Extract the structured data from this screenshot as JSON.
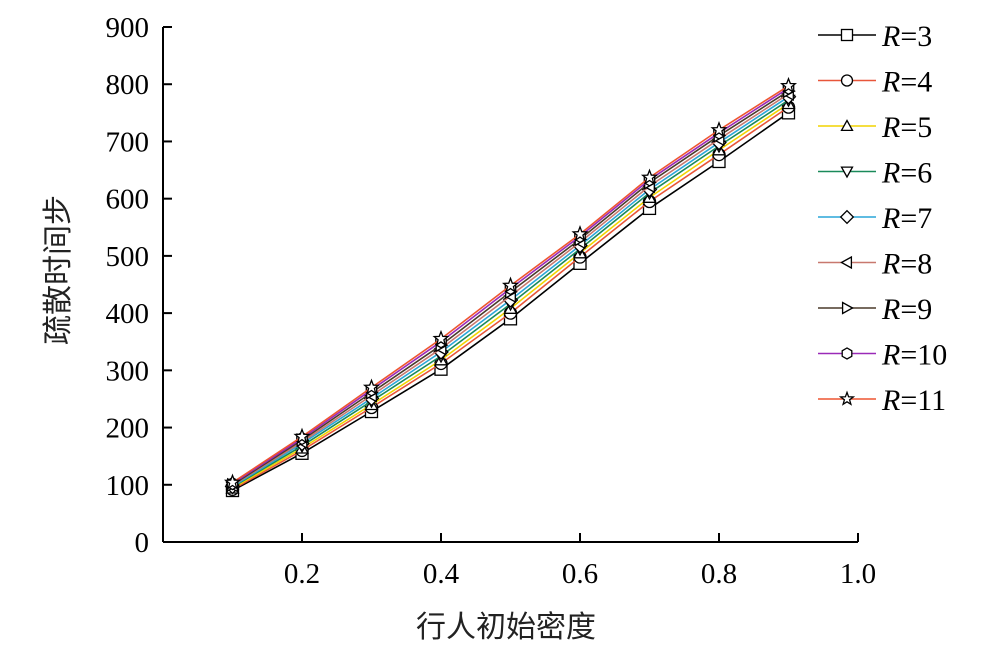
{
  "chart_data": {
    "type": "line",
    "title": "",
    "xlabel": "行人初始密度",
    "ylabel": "疏散时间步",
    "xlim": [
      0,
      1.0
    ],
    "ylim": [
      0,
      900
    ],
    "x_ticks": [
      "0.2",
      "0.4",
      "0.6",
      "0.8",
      "1.0"
    ],
    "y_ticks": [
      "0",
      "100",
      "200",
      "300",
      "400",
      "500",
      "600",
      "700",
      "800",
      "900"
    ],
    "grid": false,
    "legend_position": "right",
    "x": [
      0.1,
      0.2,
      0.3,
      0.4,
      0.5,
      0.6,
      0.7,
      0.8,
      0.9
    ],
    "series": [
      {
        "name": "R=3",
        "symbol": "R",
        "value_label": "=3",
        "marker": "square",
        "color": "#000000",
        "values": [
          90,
          155,
          228,
          302,
          390,
          487,
          583,
          665,
          750
        ]
      },
      {
        "name": "R=4",
        "symbol": "R",
        "value_label": "=4",
        "marker": "circle",
        "color": "#e8563a",
        "values": [
          92,
          160,
          235,
          312,
          400,
          498,
          595,
          677,
          760
        ]
      },
      {
        "name": "R=5",
        "symbol": "R",
        "value_label": "=5",
        "marker": "triangle-up",
        "color": "#f2d400",
        "values": [
          94,
          164,
          240,
          318,
          408,
          505,
          602,
          685,
          766
        ]
      },
      {
        "name": "R=6",
        "symbol": "R",
        "value_label": "=6",
        "marker": "triangle-down",
        "color": "#1a8a5a",
        "values": [
          96,
          168,
          246,
          325,
          416,
          512,
          610,
          692,
          772
        ]
      },
      {
        "name": "R=7",
        "symbol": "R",
        "value_label": "=7",
        "marker": "diamond",
        "color": "#2aa6d8",
        "values": [
          97,
          172,
          251,
          332,
          423,
          518,
          616,
          698,
          778
        ]
      },
      {
        "name": "R=8",
        "symbol": "R",
        "value_label": "=8",
        "marker": "triangle-left",
        "color": "#c8786e",
        "values": [
          99,
          175,
          256,
          338,
          430,
          524,
          622,
          704,
          783
        ]
      },
      {
        "name": "R=9",
        "symbol": "R",
        "value_label": "=9",
        "marker": "triangle-right",
        "color": "#4a3a2a",
        "values": [
          100,
          178,
          261,
          344,
          437,
          529,
          628,
          710,
          788
        ]
      },
      {
        "name": "R=10",
        "symbol": "R",
        "value_label": "=10",
        "marker": "hexagon",
        "color": "#9a2ab8",
        "values": [
          102,
          181,
          266,
          350,
          443,
          534,
          633,
          715,
          793
        ]
      },
      {
        "name": "R=11",
        "symbol": "R",
        "value_label": "=11",
        "marker": "star",
        "color": "#ee5530",
        "values": [
          104,
          184,
          270,
          355,
          448,
          538,
          637,
          720,
          797
        ]
      }
    ]
  }
}
